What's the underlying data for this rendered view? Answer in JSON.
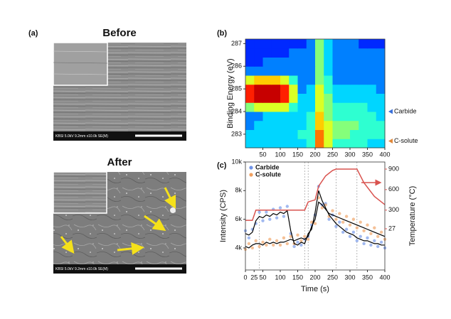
{
  "panel_a": {
    "label": "(a)",
    "before": {
      "title": "Before",
      "caption": "KBSI 5.0kV 9.2mm x10.0k SE(M)"
    },
    "after": {
      "title": "After",
      "caption": "KBSI 5.0kV 9.2mm x10.0k SE(M)"
    }
  },
  "chart_data": [
    {
      "type": "heatmap",
      "label": "(b)",
      "ylabel": "Binding Energy (eV)",
      "x": [
        12.5,
        37.5,
        62.5,
        87.5,
        112.5,
        137.5,
        162.5,
        187.5,
        212.5,
        237.5,
        262.5,
        287.5,
        312.5,
        337.5,
        362.5,
        387.5
      ],
      "y": [
        282.6,
        283.0,
        283.4,
        283.8,
        284.2,
        284.6,
        285.0,
        285.4,
        285.8,
        286.2,
        286.6,
        287.0
      ],
      "z": [
        [
          3,
          3,
          3,
          3,
          3,
          3,
          3,
          4,
          8,
          6,
          4,
          4,
          4,
          4,
          3,
          3
        ],
        [
          3,
          3,
          3,
          3,
          3,
          3,
          4,
          4,
          8,
          6,
          5,
          5,
          4,
          4,
          4,
          4
        ],
        [
          2,
          3,
          3,
          3,
          3,
          3,
          3,
          4,
          7,
          6,
          5,
          5,
          5,
          4,
          4,
          4
        ],
        [
          2,
          2,
          3,
          3,
          3,
          3,
          3,
          4,
          7,
          5,
          4,
          4,
          4,
          4,
          4,
          3
        ],
        [
          5,
          6,
          6,
          6,
          6,
          4,
          3,
          3,
          6,
          5,
          4,
          4,
          4,
          4,
          3,
          3
        ],
        [
          9,
          10,
          10,
          10,
          9,
          6,
          3,
          3,
          6,
          5,
          3,
          3,
          3,
          3,
          3,
          3
        ],
        [
          9,
          10,
          10,
          10,
          9,
          6,
          2,
          3,
          6,
          4,
          3,
          3,
          3,
          3,
          3,
          2
        ],
        [
          6,
          7,
          7,
          7,
          6,
          4,
          2,
          2,
          5,
          4,
          2,
          2,
          2,
          2,
          2,
          2
        ],
        [
          2,
          2,
          2,
          2,
          2,
          2,
          2,
          2,
          5,
          3,
          2,
          2,
          2,
          2,
          2,
          2
        ],
        [
          1,
          1,
          2,
          2,
          2,
          2,
          2,
          2,
          5,
          3,
          2,
          2,
          2,
          2,
          2,
          2
        ],
        [
          1,
          1,
          1,
          1,
          1,
          2,
          2,
          2,
          5,
          3,
          2,
          2,
          2,
          2,
          2,
          2
        ],
        [
          1,
          1,
          1,
          1,
          1,
          1,
          1,
          2,
          5,
          3,
          2,
          2,
          2,
          1,
          1,
          1
        ]
      ],
      "zlim": [
        0,
        10
      ],
      "xlim": [
        0,
        400
      ],
      "ylim": [
        282.4,
        287.2
      ],
      "xticks": [
        50,
        100,
        150,
        200,
        250,
        300,
        350,
        400
      ],
      "yticks": [
        283,
        284,
        285,
        286,
        287
      ],
      "annotations": [
        {
          "text": "Carbide",
          "y": 284,
          "color": "#3a6fd8"
        },
        {
          "text": "C-solute",
          "y": 282.7,
          "color": "#e0883a"
        }
      ]
    },
    {
      "type": "line",
      "label": "(c)",
      "xlabel": "Time (s)",
      "ylabel": "Intensity (CPS)",
      "y2label": "Temperature (°C)",
      "x": [
        0,
        10,
        20,
        30,
        40,
        50,
        60,
        70,
        80,
        90,
        100,
        110,
        120,
        130,
        140,
        150,
        160,
        170,
        180,
        190,
        200,
        210,
        220,
        230,
        240,
        250,
        260,
        270,
        280,
        290,
        300,
        310,
        320,
        330,
        340,
        350,
        360,
        370,
        380,
        390,
        400
      ],
      "xlim": [
        0,
        400
      ],
      "ylim": [
        2460,
        10000
      ],
      "y2lim": [
        -576,
        1004
      ],
      "xticks": [
        0,
        25,
        50,
        100,
        150,
        200,
        250,
        300,
        350,
        400
      ],
      "yticks": [
        {
          "value": 4000,
          "label": "4k"
        },
        {
          "value": 6000,
          "label": "6k"
        },
        {
          "value": 8000,
          "label": "8k"
        },
        {
          "value": 10000,
          "label": "10k"
        }
      ],
      "y2ticks": [
        27,
        300,
        600,
        900
      ],
      "vlines": [
        40,
        170,
        180,
        260,
        320
      ],
      "legend": "upper left",
      "series": [
        {
          "name": "Carbide",
          "color": "#6f93e8",
          "fit_color": "#000000",
          "values": [
            5200,
            4700,
            5300,
            5700,
            6500,
            5900,
            6500,
            6000,
            6700,
            6100,
            6800,
            6200,
            6900,
            5000,
            4100,
            4400,
            4200,
            4600,
            4800,
            5600,
            6300,
            8300,
            7000,
            7100,
            6000,
            6300,
            5500,
            5800,
            5100,
            5300,
            4800,
            5100,
            4500,
            4800,
            4300,
            4700,
            4200,
            4500,
            4100,
            4400,
            4000
          ],
          "fit": [
            5000,
            4900,
            5100,
            5900,
            6200,
            6100,
            6300,
            6200,
            6400,
            6300,
            6500,
            6400,
            6600,
            5200,
            4300,
            4200,
            4400,
            4300,
            5000,
            5300,
            6500,
            8000,
            7300,
            6800,
            6300,
            6000,
            5700,
            5500,
            5300,
            5100,
            5000,
            4900,
            4700,
            4600,
            4500,
            4500,
            4400,
            4300,
            4300,
            4200,
            4200
          ]
        },
        {
          "name": "C-solute",
          "color": "#f0a060",
          "fit_color": "#000000",
          "values": [
            3900,
            4300,
            4000,
            4500,
            4100,
            4400,
            4200,
            4600,
            4200,
            4500,
            4200,
            4700,
            4300,
            4800,
            4300,
            4900,
            4500,
            4800,
            4600,
            5800,
            5700,
            7500,
            6800,
            7000,
            6200,
            6600,
            6000,
            6400,
            5800,
            6200,
            5600,
            6000,
            5400,
            5800,
            5200,
            5600,
            5000,
            5400,
            4800,
            5100,
            4600
          ],
          "fit": [
            4100,
            4000,
            4200,
            4300,
            4300,
            4200,
            4400,
            4300,
            4400,
            4300,
            4400,
            4400,
            4500,
            4600,
            4500,
            4600,
            4700,
            4600,
            4800,
            5500,
            6000,
            7200,
            7000,
            6700,
            6400,
            6300,
            6200,
            6100,
            6000,
            5900,
            5800,
            5700,
            5600,
            5500,
            5400,
            5300,
            5200,
            5100,
            5000,
            4900,
            4800
          ]
        }
      ],
      "temperature": {
        "axis": "y2",
        "color": "#d9534f",
        "x": [
          0,
          20,
          30,
          170,
          180,
          200,
          210,
          230,
          250,
          260,
          320,
          340,
          370,
          400
        ],
        "values": [
          150,
          150,
          300,
          300,
          420,
          450,
          650,
          800,
          880,
          900,
          900,
          700,
          500,
          380
        ]
      }
    }
  ]
}
